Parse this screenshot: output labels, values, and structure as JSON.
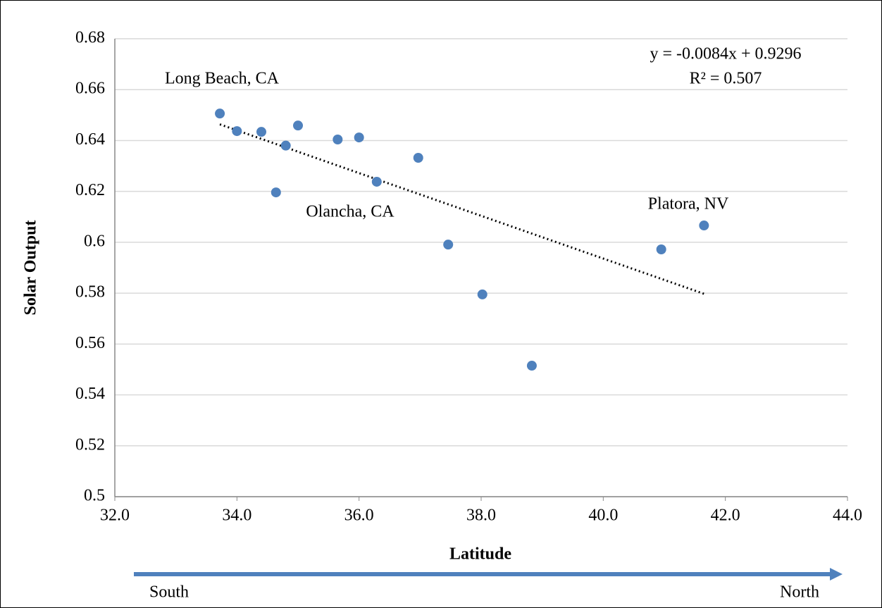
{
  "chart_data": {
    "type": "scatter",
    "x_label": "Latitude",
    "y_label": "Solar Output",
    "series": [
      {
        "color": "#4f81bd",
        "x": [
          33.72,
          34.0,
          34.4,
          34.64,
          34.8,
          35.0,
          35.65,
          36.0,
          36.29,
          36.97,
          37.46,
          38.02,
          38.83,
          40.95,
          41.65
        ],
        "values": [
          0.6506,
          0.6437,
          0.6434,
          0.6196,
          0.638,
          0.6459,
          0.6404,
          0.6412,
          0.6238,
          0.6332,
          0.5991,
          0.5795,
          0.5515,
          0.5972,
          0.6066
        ]
      }
    ],
    "trendline": {
      "equation": "y = -0.0084x + 0.9296",
      "r2": "R² = 0.507",
      "slope": -0.0084,
      "intercept": 0.9296
    },
    "annotations": [
      "Long Beach, CA",
      "Olancha, CA",
      "Platora, NV"
    ],
    "direction_labels": [
      "South",
      "North"
    ],
    "xlim": [
      32,
      44
    ],
    "xticks": [
      {
        "value": 32,
        "label": "32.0"
      },
      {
        "value": 34,
        "label": "34.0"
      },
      {
        "value": 36,
        "label": "36.0"
      },
      {
        "value": 38,
        "label": "38.0"
      },
      {
        "value": 40,
        "label": "40.0"
      },
      {
        "value": 42,
        "label": "42.0"
      },
      {
        "value": 44,
        "label": "44.0"
      }
    ],
    "ylim": [
      0.5,
      0.68
    ],
    "yticks": [
      0.5,
      0.52,
      0.54,
      0.56,
      0.58,
      0.6,
      0.62,
      0.64,
      0.66,
      0.68
    ],
    "grid": true
  }
}
